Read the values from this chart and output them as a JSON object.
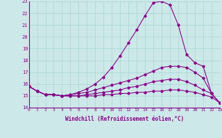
{
  "xlabel": "Windchill (Refroidissement éolien,°C)",
  "ylabel": "",
  "bg_color": "#cce8e8",
  "line_color": "#880088",
  "xlim": [
    0,
    23
  ],
  "ylim": [
    14,
    23
  ],
  "xticks": [
    0,
    1,
    2,
    3,
    4,
    5,
    6,
    7,
    8,
    9,
    10,
    11,
    12,
    13,
    14,
    15,
    16,
    17,
    18,
    19,
    20,
    21,
    22,
    23
  ],
  "yticks": [
    14,
    15,
    16,
    17,
    18,
    19,
    20,
    21,
    22,
    23
  ],
  "lines": [
    {
      "x": [
        0,
        1,
        2,
        3,
        4,
        5,
        6,
        7,
        8,
        9,
        10,
        11,
        12,
        13,
        14,
        15,
        16,
        17,
        18,
        19,
        20,
        21,
        22,
        23
      ],
      "y": [
        15.8,
        15.4,
        15.1,
        15.1,
        15.0,
        15.1,
        15.3,
        15.6,
        16.0,
        16.6,
        17.4,
        18.4,
        19.5,
        20.6,
        21.8,
        22.9,
        23.0,
        22.7,
        21.0,
        18.5,
        17.8,
        17.5,
        15.2,
        14.4
      ]
    },
    {
      "x": [
        0,
        1,
        2,
        3,
        4,
        5,
        6,
        7,
        8,
        9,
        10,
        11,
        12,
        13,
        14,
        15,
        16,
        17,
        18,
        19,
        20,
        21,
        22,
        23
      ],
      "y": [
        15.8,
        15.4,
        15.1,
        15.1,
        15.0,
        15.1,
        15.2,
        15.3,
        15.5,
        15.7,
        15.9,
        16.1,
        16.3,
        16.5,
        16.8,
        17.1,
        17.4,
        17.5,
        17.5,
        17.4,
        17.0,
        16.5,
        15.2,
        14.4
      ]
    },
    {
      "x": [
        0,
        1,
        2,
        3,
        4,
        5,
        6,
        7,
        8,
        9,
        10,
        11,
        12,
        13,
        14,
        15,
        16,
        17,
        18,
        19,
        20,
        21,
        22,
        23
      ],
      "y": [
        15.8,
        15.4,
        15.1,
        15.1,
        15.0,
        15.0,
        15.0,
        15.1,
        15.2,
        15.3,
        15.4,
        15.5,
        15.7,
        15.8,
        16.0,
        16.2,
        16.3,
        16.4,
        16.4,
        16.2,
        15.9,
        15.5,
        15.2,
        14.4
      ]
    },
    {
      "x": [
        0,
        1,
        2,
        3,
        4,
        5,
        6,
        7,
        8,
        9,
        10,
        11,
        12,
        13,
        14,
        15,
        16,
        17,
        18,
        19,
        20,
        21,
        22,
        23
      ],
      "y": [
        15.8,
        15.4,
        15.1,
        15.1,
        15.0,
        15.0,
        15.0,
        15.0,
        15.0,
        15.1,
        15.1,
        15.2,
        15.2,
        15.3,
        15.3,
        15.4,
        15.4,
        15.5,
        15.5,
        15.4,
        15.3,
        15.1,
        14.9,
        14.4
      ]
    }
  ]
}
